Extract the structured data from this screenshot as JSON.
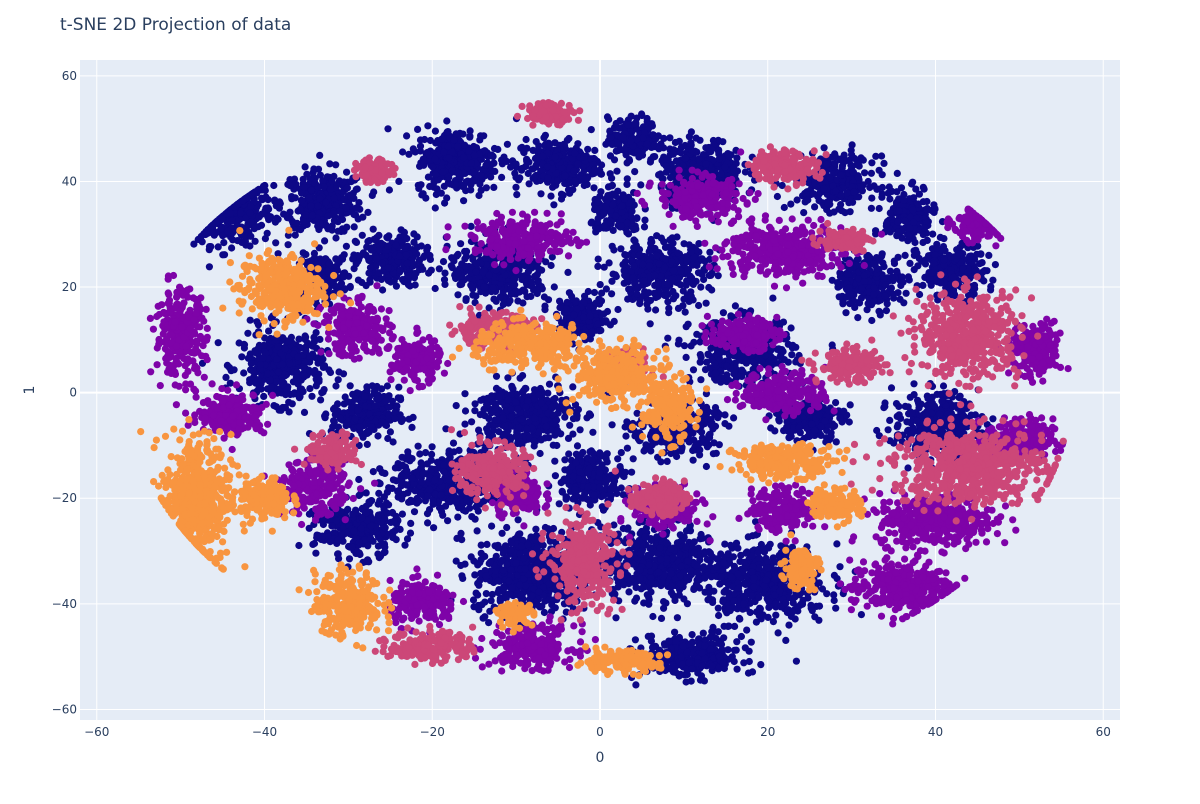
{
  "chart_data": {
    "type": "scatter",
    "title": "t-SNE 2D Projection of data",
    "xlabel": "0",
    "ylabel": "1",
    "xlim": [
      -62,
      62
    ],
    "ylim": [
      -62,
      63
    ],
    "x_ticks": [
      -60,
      -40,
      -20,
      0,
      20,
      40,
      60
    ],
    "y_ticks": [
      -60,
      -40,
      -20,
      0,
      20,
      40,
      60
    ],
    "x_tick_labels": [
      "−60",
      "−40",
      "−20",
      "0",
      "20",
      "40",
      "60"
    ],
    "y_tick_labels": [
      "−60",
      "−40",
      "−20",
      "0",
      "20",
      "40",
      "60"
    ],
    "grid": true,
    "plot_bgcolor": "#e5ecf6",
    "colors": [
      "#0d0887",
      "#7e03a8",
      "#cc4778",
      "#f89540"
    ],
    "clusters": [
      {
        "x": -44,
        "y": 34,
        "rx": 5,
        "ry": 6,
        "color": 0
      },
      {
        "x": -33,
        "y": 36,
        "rx": 5,
        "ry": 6,
        "color": 0
      },
      {
        "x": -25,
        "y": 25,
        "rx": 4,
        "ry": 5,
        "color": 0
      },
      {
        "x": -33,
        "y": 22,
        "rx": 3,
        "ry": 4,
        "color": 0
      },
      {
        "x": -38,
        "y": 5,
        "rx": 5,
        "ry": 7,
        "color": 0
      },
      {
        "x": -28,
        "y": -4,
        "rx": 4,
        "ry": 5,
        "color": 0
      },
      {
        "x": -17,
        "y": 44,
        "rx": 5,
        "ry": 6,
        "color": 0
      },
      {
        "x": -5,
        "y": 43,
        "rx": 5,
        "ry": 5,
        "color": 0
      },
      {
        "x": 4,
        "y": 48,
        "rx": 3,
        "ry": 4,
        "color": 0
      },
      {
        "x": 12,
        "y": 42,
        "rx": 5,
        "ry": 6,
        "color": 0
      },
      {
        "x": 2,
        "y": 34,
        "rx": 3,
        "ry": 4,
        "color": 0
      },
      {
        "x": 28,
        "y": 40,
        "rx": 5,
        "ry": 5,
        "color": 0
      },
      {
        "x": 37,
        "y": 33,
        "rx": 3,
        "ry": 5,
        "color": 0
      },
      {
        "x": 42,
        "y": 23,
        "rx": 4,
        "ry": 5,
        "color": 0
      },
      {
        "x": 32,
        "y": 21,
        "rx": 4,
        "ry": 5,
        "color": 0
      },
      {
        "x": 7,
        "y": 23,
        "rx": 6,
        "ry": 6,
        "color": 0
      },
      {
        "x": -12,
        "y": 23,
        "rx": 6,
        "ry": 6,
        "color": 0
      },
      {
        "x": 17,
        "y": 8,
        "rx": 6,
        "ry": 6,
        "color": 0
      },
      {
        "x": -2,
        "y": 14,
        "rx": 3,
        "ry": 4,
        "color": 0
      },
      {
        "x": -9,
        "y": -4,
        "rx": 6,
        "ry": 6,
        "color": 0
      },
      {
        "x": 9,
        "y": -7,
        "rx": 5,
        "ry": 5,
        "color": 0
      },
      {
        "x": 40,
        "y": -6,
        "rx": 5,
        "ry": 6,
        "color": 0
      },
      {
        "x": -17,
        "y": -17,
        "rx": 8,
        "ry": 6,
        "color": 0
      },
      {
        "x": -8,
        "y": -34,
        "rx": 7,
        "ry": 8,
        "color": 0
      },
      {
        "x": 7,
        "y": -32,
        "rx": 7,
        "ry": 7,
        "color": 0
      },
      {
        "x": 20,
        "y": -36,
        "rx": 7,
        "ry": 7,
        "color": 0
      },
      {
        "x": 11,
        "y": -50,
        "rx": 6,
        "ry": 4,
        "color": 0
      },
      {
        "x": -29,
        "y": -26,
        "rx": 5,
        "ry": 5,
        "color": 0
      },
      {
        "x": -1,
        "y": -16,
        "rx": 4,
        "ry": 5,
        "color": 0
      },
      {
        "x": 25,
        "y": -5,
        "rx": 4,
        "ry": 4,
        "color": 0
      },
      {
        "x": -50,
        "y": 11,
        "rx": 3,
        "ry": 8,
        "color": 1
      },
      {
        "x": -44,
        "y": -4,
        "rx": 4,
        "ry": 4,
        "color": 1
      },
      {
        "x": -34,
        "y": -18,
        "rx": 4,
        "ry": 5,
        "color": 1
      },
      {
        "x": -29,
        "y": 12,
        "rx": 4,
        "ry": 5,
        "color": 1
      },
      {
        "x": -9,
        "y": 29,
        "rx": 6,
        "ry": 4,
        "color": 1
      },
      {
        "x": 22,
        "y": 27,
        "rx": 7,
        "ry": 5,
        "color": 1
      },
      {
        "x": 45,
        "y": 32,
        "rx": 3,
        "ry": 3,
        "color": 1
      },
      {
        "x": 12,
        "y": 37,
        "rx": 5,
        "ry": 4,
        "color": 1
      },
      {
        "x": 17,
        "y": 11,
        "rx": 4,
        "ry": 3,
        "color": 1
      },
      {
        "x": 22,
        "y": 0,
        "rx": 5,
        "ry": 4,
        "color": 1
      },
      {
        "x": 52,
        "y": 8,
        "rx": 3,
        "ry": 5,
        "color": 1
      },
      {
        "x": 50,
        "y": -9,
        "rx": 4,
        "ry": 4,
        "color": 1
      },
      {
        "x": 40,
        "y": -24,
        "rx": 7,
        "ry": 5,
        "color": 1
      },
      {
        "x": 36,
        "y": -37,
        "rx": 6,
        "ry": 5,
        "color": 1
      },
      {
        "x": 22,
        "y": -22,
        "rx": 4,
        "ry": 4,
        "color": 1
      },
      {
        "x": -10,
        "y": -19,
        "rx": 3,
        "ry": 4,
        "color": 1
      },
      {
        "x": -21,
        "y": -40,
        "rx": 4,
        "ry": 4,
        "color": 1
      },
      {
        "x": -8,
        "y": -48,
        "rx": 5,
        "ry": 4,
        "color": 1
      },
      {
        "x": 8,
        "y": -22,
        "rx": 4,
        "ry": 4,
        "color": 1
      },
      {
        "x": -22,
        "y": 6,
        "rx": 3,
        "ry": 4,
        "color": 1
      },
      {
        "x": -27,
        "y": 42,
        "rx": 2,
        "ry": 2,
        "color": 2
      },
      {
        "x": -6,
        "y": 53,
        "rx": 3,
        "ry": 2,
        "color": 2
      },
      {
        "x": 22,
        "y": 43,
        "rx": 4,
        "ry": 3,
        "color": 2
      },
      {
        "x": 29,
        "y": 29,
        "rx": 3,
        "ry": 2,
        "color": 2
      },
      {
        "x": -13,
        "y": 12,
        "rx": 5,
        "ry": 3,
        "color": 2
      },
      {
        "x": 44,
        "y": 11,
        "rx": 6,
        "ry": 8,
        "color": 2
      },
      {
        "x": 30,
        "y": 5,
        "rx": 4,
        "ry": 3,
        "color": 2
      },
      {
        "x": 44,
        "y": -14,
        "rx": 9,
        "ry": 7,
        "color": 2
      },
      {
        "x": -13,
        "y": -15,
        "rx": 4,
        "ry": 5,
        "color": 2
      },
      {
        "x": -2,
        "y": -32,
        "rx": 4,
        "ry": 8,
        "color": 2
      },
      {
        "x": 7,
        "y": -20,
        "rx": 3,
        "ry": 3,
        "color": 2
      },
      {
        "x": -20,
        "y": -48,
        "rx": 5,
        "ry": 3,
        "color": 2
      },
      {
        "x": -32,
        "y": -11,
        "rx": 3,
        "ry": 3,
        "color": 2
      },
      {
        "x": 3,
        "y": 5,
        "rx": 3,
        "ry": 3,
        "color": 2
      },
      {
        "x": -48,
        "y": -20,
        "rx": 4,
        "ry": 12,
        "color": 3
      },
      {
        "x": -38,
        "y": 20,
        "rx": 5,
        "ry": 6,
        "color": 3
      },
      {
        "x": -30,
        "y": -40,
        "rx": 4,
        "ry": 6,
        "color": 3
      },
      {
        "x": -40,
        "y": -20,
        "rx": 3,
        "ry": 4,
        "color": 3
      },
      {
        "x": -8,
        "y": 9,
        "rx": 7,
        "ry": 4,
        "color": 3
      },
      {
        "x": 2,
        "y": 3,
        "rx": 5,
        "ry": 5,
        "color": 3
      },
      {
        "x": 8,
        "y": -3,
        "rx": 3,
        "ry": 6,
        "color": 3
      },
      {
        "x": 22,
        "y": -13,
        "rx": 6,
        "ry": 3,
        "color": 3
      },
      {
        "x": 28,
        "y": -21,
        "rx": 3,
        "ry": 3,
        "color": 3
      },
      {
        "x": 24,
        "y": -33,
        "rx": 2,
        "ry": 4,
        "color": 3
      },
      {
        "x": 2,
        "y": -51,
        "rx": 5,
        "ry": 2,
        "color": 3
      },
      {
        "x": -10,
        "y": -42,
        "rx": 2,
        "ry": 2,
        "color": 3
      }
    ]
  }
}
